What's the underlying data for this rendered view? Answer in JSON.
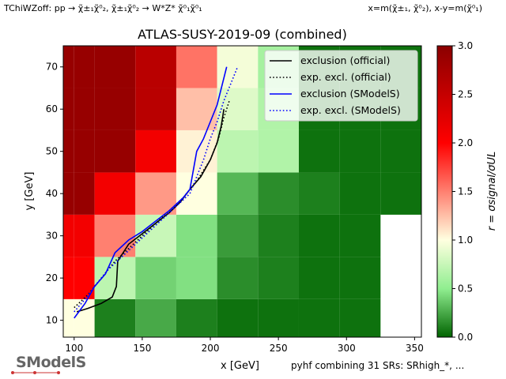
{
  "header": {
    "top_left": "TChiWZoff: pp → χ̃±₁χ̃⁰₂, χ̃±₁χ̃⁰₂ → W*Z* χ̃⁰₁χ̃⁰₁",
    "top_right": "x=m(χ̃±₁, χ̃⁰₂), x-y=m(χ̃⁰₁)"
  },
  "logo_text": "SModelS",
  "footer": "pyhf combining 31 SRs: SRhigh_*, ...",
  "colors": {
    "r0": "#006400",
    "r05": "#90ee90",
    "r1": "#ffffe0",
    "r2": "#ff0000",
    "r3": "#8b0000",
    "official_line": "#000000",
    "smodels_line": "#0000ff"
  },
  "chart_data": {
    "type": "heatmap",
    "title": "ATLAS-SUSY-2019-09 (combined)",
    "xlabel": "x [GeV]",
    "ylabel": "y [GeV]",
    "colorbar_label": "r = σsignal/σUL",
    "xlim": [
      92,
      355
    ],
    "ylim": [
      6,
      75
    ],
    "xticks": [
      100,
      150,
      200,
      250,
      300,
      350
    ],
    "yticks": [
      10,
      20,
      30,
      40,
      50,
      60,
      70
    ],
    "clim": [
      0,
      3
    ],
    "colorbar_ticks": [
      0.0,
      0.5,
      1.0,
      1.5,
      2.0,
      2.5,
      3.0
    ],
    "grid": false,
    "legend_position": "top-right",
    "x_edges": [
      80,
      100,
      115,
      145,
      175,
      205,
      235,
      265,
      295,
      325,
      355
    ],
    "cells": [
      {
        "x": [
          80,
          100
        ],
        "y": [
          5,
          15
        ],
        "r": 1.0
      },
      {
        "x": [
          80,
          100
        ],
        "y": [
          15,
          25
        ],
        "r": 2.0
      },
      {
        "x": [
          80,
          100
        ],
        "y": [
          25,
          35
        ],
        "r": 2.1
      },
      {
        "x": [
          80,
          100
        ],
        "y": [
          35,
          45
        ],
        "r": 2.9
      },
      {
        "x": [
          80,
          100
        ],
        "y": [
          45,
          55
        ],
        "r": 2.9
      },
      {
        "x": [
          80,
          100
        ],
        "y": [
          55,
          65
        ],
        "r": 2.9
      },
      {
        "x": [
          80,
          100
        ],
        "y": [
          65,
          75
        ],
        "r": 2.9
      },
      {
        "x": [
          100,
          115
        ],
        "y": [
          5,
          15
        ],
        "r": 1.0
      },
      {
        "x": [
          100,
          115
        ],
        "y": [
          15,
          25
        ],
        "r": 2.0
      },
      {
        "x": [
          100,
          115
        ],
        "y": [
          25,
          35
        ],
        "r": 2.1
      },
      {
        "x": [
          100,
          115
        ],
        "y": [
          35,
          45
        ],
        "r": 2.9
      },
      {
        "x": [
          100,
          115
        ],
        "y": [
          45,
          55
        ],
        "r": 2.9
      },
      {
        "x": [
          100,
          115
        ],
        "y": [
          55,
          65
        ],
        "r": 2.9
      },
      {
        "x": [
          100,
          115
        ],
        "y": [
          65,
          75
        ],
        "r": 2.9
      },
      {
        "x": [
          115,
          145
        ],
        "y": [
          5,
          15
        ],
        "r": 0.1
      },
      {
        "x": [
          115,
          145
        ],
        "y": [
          15,
          25
        ],
        "r": 0.7
      },
      {
        "x": [
          115,
          145
        ],
        "y": [
          25,
          35
        ],
        "r": 1.5
      },
      {
        "x": [
          115,
          145
        ],
        "y": [
          35,
          45
        ],
        "r": 2.1
      },
      {
        "x": [
          115,
          145
        ],
        "y": [
          45,
          55
        ],
        "r": 2.9
      },
      {
        "x": [
          115,
          145
        ],
        "y": [
          55,
          65
        ],
        "r": 2.9
      },
      {
        "x": [
          115,
          145
        ],
        "y": [
          65,
          75
        ],
        "r": 2.9
      },
      {
        "x": [
          145,
          175
        ],
        "y": [
          5,
          15
        ],
        "r": 0.25
      },
      {
        "x": [
          145,
          175
        ],
        "y": [
          15,
          25
        ],
        "r": 0.4
      },
      {
        "x": [
          145,
          175
        ],
        "y": [
          25,
          35
        ],
        "r": 0.75
      },
      {
        "x": [
          145,
          175
        ],
        "y": [
          35,
          45
        ],
        "r": 1.4
      },
      {
        "x": [
          145,
          175
        ],
        "y": [
          45,
          55
        ],
        "r": 2.1
      },
      {
        "x": [
          145,
          175
        ],
        "y": [
          55,
          65
        ],
        "r": 2.6
      },
      {
        "x": [
          145,
          175
        ],
        "y": [
          65,
          75
        ],
        "r": 2.6
      },
      {
        "x": [
          175,
          205
        ],
        "y": [
          5,
          15
        ],
        "r": 0.1
      },
      {
        "x": [
          175,
          205
        ],
        "y": [
          15,
          25
        ],
        "r": 0.45
      },
      {
        "x": [
          175,
          205
        ],
        "y": [
          25,
          35
        ],
        "r": 0.45
      },
      {
        "x": [
          175,
          205
        ],
        "y": [
          35,
          45
        ],
        "r": 1.0
      },
      {
        "x": [
          175,
          205
        ],
        "y": [
          45,
          55
        ],
        "r": 1.05
      },
      {
        "x": [
          175,
          205
        ],
        "y": [
          55,
          65
        ],
        "r": 1.25
      },
      {
        "x": [
          175,
          205
        ],
        "y": [
          65,
          75
        ],
        "r": 1.55
      },
      {
        "x": [
          205,
          235
        ],
        "y": [
          5,
          15
        ],
        "r": 0.05
      },
      {
        "x": [
          205,
          235
        ],
        "y": [
          15,
          25
        ],
        "r": 0.15
      },
      {
        "x": [
          205,
          235
        ],
        "y": [
          25,
          35
        ],
        "r": 0.2
      },
      {
        "x": [
          205,
          235
        ],
        "y": [
          35,
          45
        ],
        "r": 0.3
      },
      {
        "x": [
          205,
          235
        ],
        "y": [
          45,
          55
        ],
        "r": 0.7
      },
      {
        "x": [
          205,
          235
        ],
        "y": [
          55,
          65
        ],
        "r": 0.85
      },
      {
        "x": [
          205,
          235
        ],
        "y": [
          65,
          75
        ],
        "r": 0.95
      },
      {
        "x": [
          235,
          265
        ],
        "y": [
          5,
          15
        ],
        "r": 0.05
      },
      {
        "x": [
          235,
          265
        ],
        "y": [
          15,
          25
        ],
        "r": 0.1
      },
      {
        "x": [
          235,
          265
        ],
        "y": [
          25,
          35
        ],
        "r": 0.1
      },
      {
        "x": [
          235,
          265
        ],
        "y": [
          35,
          45
        ],
        "r": 0.15
      },
      {
        "x": [
          235,
          265
        ],
        "y": [
          45,
          55
        ],
        "r": 0.65
      },
      {
        "x": [
          235,
          265
        ],
        "y": [
          55,
          65
        ],
        "r": 0.65
      },
      {
        "x": [
          235,
          265
        ],
        "y": [
          65,
          75
        ],
        "r": 0.6
      },
      {
        "x": [
          265,
          295
        ],
        "y": [
          5,
          15
        ],
        "r": 0.05
      },
      {
        "x": [
          265,
          295
        ],
        "y": [
          15,
          25
        ],
        "r": 0.05
      },
      {
        "x": [
          265,
          295
        ],
        "y": [
          25,
          35
        ],
        "r": 0.05
      },
      {
        "x": [
          265,
          295
        ],
        "y": [
          35,
          45
        ],
        "r": 0.1
      },
      {
        "x": [
          265,
          295
        ],
        "y": [
          45,
          55
        ],
        "r": 0.05
      },
      {
        "x": [
          265,
          295
        ],
        "y": [
          55,
          65
        ],
        "r": 0.05
      },
      {
        "x": [
          265,
          295
        ],
        "y": [
          65,
          75
        ],
        "r": 0.05
      },
      {
        "x": [
          295,
          325
        ],
        "y": [
          5,
          15
        ],
        "r": 0.05
      },
      {
        "x": [
          295,
          325
        ],
        "y": [
          15,
          25
        ],
        "r": 0.05
      },
      {
        "x": [
          295,
          325
        ],
        "y": [
          25,
          35
        ],
        "r": 0.05
      },
      {
        "x": [
          295,
          325
        ],
        "y": [
          35,
          45
        ],
        "r": 0.05
      },
      {
        "x": [
          295,
          325
        ],
        "y": [
          45,
          55
        ],
        "r": 0.05
      },
      {
        "x": [
          295,
          325
        ],
        "y": [
          55,
          65
        ],
        "r": 0.05
      },
      {
        "x": [
          295,
          325
        ],
        "y": [
          65,
          75
        ],
        "r": 0.05
      },
      {
        "x": [
          325,
          355
        ],
        "y": [
          35,
          45
        ],
        "r": 0.05
      },
      {
        "x": [
          325,
          355
        ],
        "y": [
          45,
          55
        ],
        "r": 0.05
      },
      {
        "x": [
          325,
          355
        ],
        "y": [
          55,
          65
        ],
        "r": 0.05
      },
      {
        "x": [
          325,
          355
        ],
        "y": [
          65,
          75
        ],
        "r": 0.05
      }
    ],
    "series": [
      {
        "name": "exclusion (official)",
        "color": "#000000",
        "dash": "solid",
        "x": [
          102,
          110,
          120,
          128,
          131,
          132,
          140,
          150,
          160,
          170,
          178,
          185,
          193,
          200,
          205,
          208,
          210
        ],
        "y": [
          12,
          12.8,
          14,
          15.5,
          18,
          24,
          28,
          30.5,
          33,
          35.5,
          38,
          41,
          44,
          48,
          52,
          56,
          60
        ]
      },
      {
        "name": "exp. excl. (official)",
        "color": "#000000",
        "dash": "dotted",
        "x": [
          100,
          110,
          120,
          130,
          140,
          150,
          160,
          170,
          180,
          190,
          200,
          206,
          210,
          214
        ],
        "y": [
          13,
          16,
          20,
          24,
          27,
          30,
          33,
          36,
          39,
          43,
          48,
          53,
          58,
          62
        ]
      },
      {
        "name": "exclusion (SModelS)",
        "color": "#0000ff",
        "dash": "solid",
        "x": [
          100,
          108,
          115,
          123,
          130,
          140,
          150,
          160,
          170,
          180,
          185,
          190,
          195,
          205,
          212
        ],
        "y": [
          10.5,
          14,
          18,
          21,
          26,
          29,
          31,
          33.5,
          36,
          39,
          41,
          50,
          53,
          61,
          70
        ]
      },
      {
        "name": "exp. excl. (SModelS)",
        "color": "#0000ff",
        "dash": "dotted",
        "x": [
          100,
          108,
          115,
          125,
          135,
          145,
          155,
          165,
          175,
          185,
          190,
          195,
          200,
          205,
          210,
          220
        ],
        "y": [
          12,
          15,
          18,
          22,
          25,
          28,
          31,
          34,
          37,
          40,
          44,
          48,
          53,
          57,
          62,
          70
        ]
      }
    ]
  }
}
